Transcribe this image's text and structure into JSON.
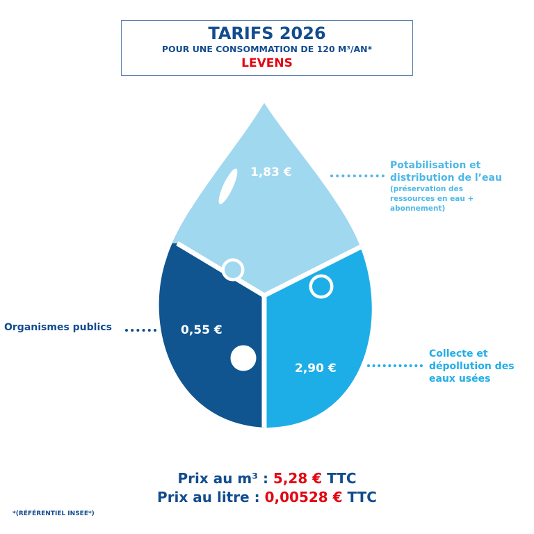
{
  "header": {
    "title": "TARIFS 2026",
    "subtitle": "POUR UNE CONSOMMATION DE 120 M³/AN*",
    "city": "LEVENS"
  },
  "segments": [
    {
      "label": "Potabilisation et distribution de l’eau",
      "sublabel": "(préservation des ressources en eau + abonnement)",
      "value": "1,83 €",
      "color": "#a0d8ef"
    },
    {
      "label": "Organismes publics",
      "value": "0,55 €",
      "color": "#10558f"
    },
    {
      "label": "Collecte et dépollution des eaux usées",
      "value": "2,90 €",
      "color": "#1eaee7"
    }
  ],
  "totals": {
    "m3_label": "Prix au m³ : ",
    "m3_value": "5,28 €",
    "m3_suffix": " TTC",
    "litre_label": "Prix au litre : ",
    "litre_value": "0,00528 €",
    "litre_suffix": " TTC"
  },
  "footnote": "*(RÉFÉRENTIEL INSEE*)"
}
